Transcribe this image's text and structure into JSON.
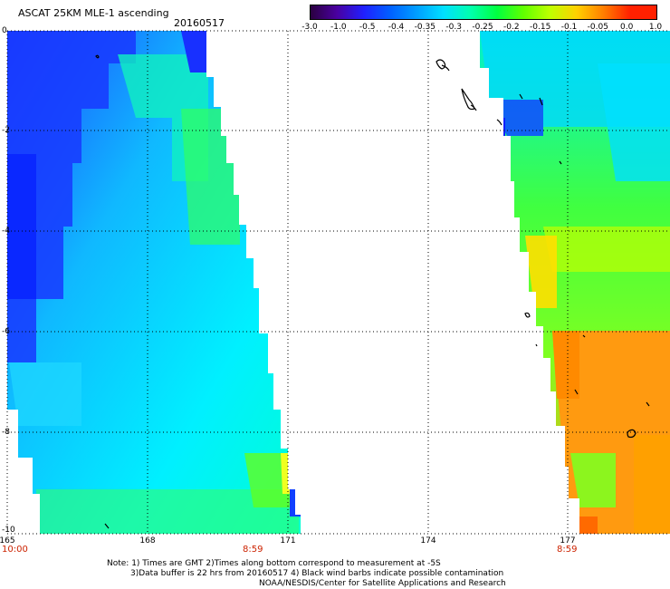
{
  "header": {
    "title": "ASCAT 25KM MLE-1 ascending",
    "date": "20160517"
  },
  "colorbar": {
    "labels": [
      "-3.0",
      "-1.0",
      "-0.5",
      "-0.4",
      "-0.35",
      "-0.3",
      "-0.25",
      "-0.2",
      "-0.15",
      "-0.1",
      "-0.05",
      "0.0",
      "1.0"
    ],
    "colors": [
      "#2a0040",
      "#4a00a0",
      "#2020ff",
      "#0060ff",
      "#00a0ff",
      "#00e0ff",
      "#00ffb0",
      "#00ff40",
      "#60ff00",
      "#c0ff00",
      "#ffd000",
      "#ff8000",
      "#ff2000"
    ]
  },
  "map": {
    "y_labels": [
      "0",
      "-2",
      "-4",
      "-6",
      "-8",
      "-10"
    ],
    "x_labels": [
      "165",
      "168",
      "171",
      "174",
      "177"
    ],
    "times": [
      "10:00",
      "8:59",
      "8:59"
    ]
  },
  "notes": {
    "line1": "Note: 1) Times are GMT 2)Times along bottom correspond to measurement at -5S",
    "line2": "3)Data buffer is 22 hrs from 20160517 4) Black wind barbs indicate possible contamination",
    "line3": "NOAA/NESDIS/Center for Satellite Applications and Research"
  }
}
